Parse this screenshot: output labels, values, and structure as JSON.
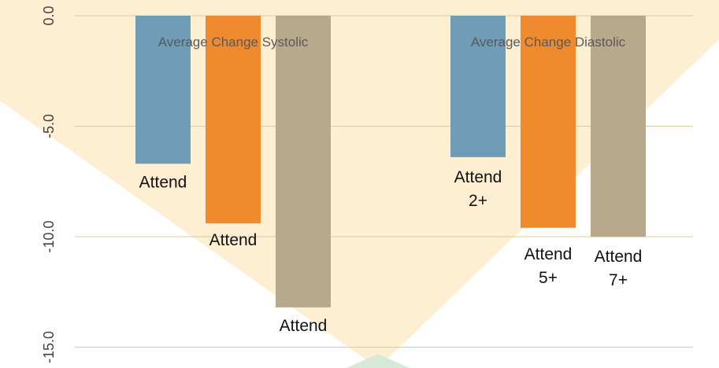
{
  "chart_data": {
    "type": "bar",
    "title": "",
    "xlabel": "",
    "ylabel": "",
    "ylim": [
      -15.0,
      0.0
    ],
    "yticks": [
      "0.0",
      "-5.0",
      "-10.0",
      "-15.0"
    ],
    "ytick_values": [
      0,
      -5,
      -10,
      -15
    ],
    "grid": true,
    "legend": "none",
    "groups": [
      {
        "name": "Average Change Systolic",
        "bars": [
          {
            "label": "Attend",
            "value": -6.7,
            "color": "#6f9db7"
          },
          {
            "label": "Attend",
            "value": -9.4,
            "color": "#ef8a2e"
          },
          {
            "label": "Attend",
            "value": -13.2,
            "color": "#b8a98d"
          }
        ]
      },
      {
        "name": "Average Change Diastolic",
        "bars": [
          {
            "label": "Attend\n2+",
            "value": -6.4,
            "color": "#6f9db7"
          },
          {
            "label": "Attend\n5+",
            "value": -9.6,
            "color": "#ef8a2e"
          },
          {
            "label": "Attend\n7+",
            "value": -10.0,
            "color": "#b8a98d"
          }
        ]
      }
    ]
  },
  "colors": {
    "gridline": "#dcc9a6",
    "axis_text": "#404040",
    "overlay_orange": "#fde9c4",
    "overlay_green": "#d7e9d8"
  }
}
